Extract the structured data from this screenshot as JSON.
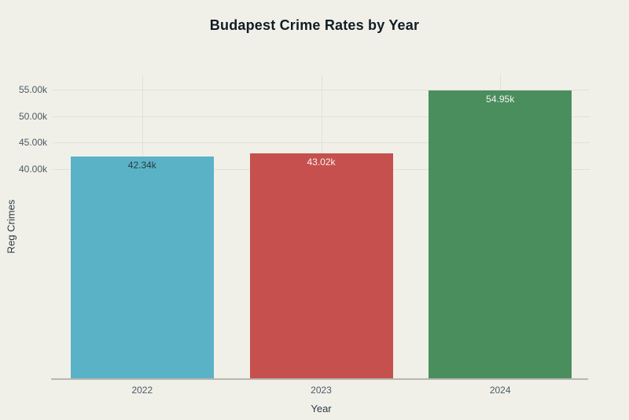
{
  "chart_data": {
    "type": "bar",
    "title": "Budapest Crime Rates by Year",
    "xlabel": "Year",
    "ylabel": "Reg Crimes",
    "categories": [
      "2022",
      "2023",
      "2024"
    ],
    "values": [
      42340,
      43020,
      54950
    ],
    "bar_labels": [
      "42.34k",
      "43.02k",
      "54.95k"
    ],
    "bar_colors": [
      "#5ab2c6",
      "#c6504d",
      "#4b8e5e"
    ],
    "bar_label_colors": [
      "#2b3b43",
      "#f4f4f1",
      "#f4f4f1"
    ],
    "y_ticks": [
      {
        "value": 40000,
        "label": "40.00k"
      },
      {
        "value": 45000,
        "label": "45.00k"
      },
      {
        "value": 50000,
        "label": "50.00k"
      },
      {
        "value": 55000,
        "label": "55.00k"
      }
    ],
    "ylim": [
      0,
      57900
    ],
    "grid": true,
    "legend": "none",
    "background": "#f0f0e9",
    "gridline_color": "#e1e1d9",
    "axis_line_color": "#b7b7af",
    "tick_text_color": "#4c5a63",
    "title_color": "#111c24"
  }
}
